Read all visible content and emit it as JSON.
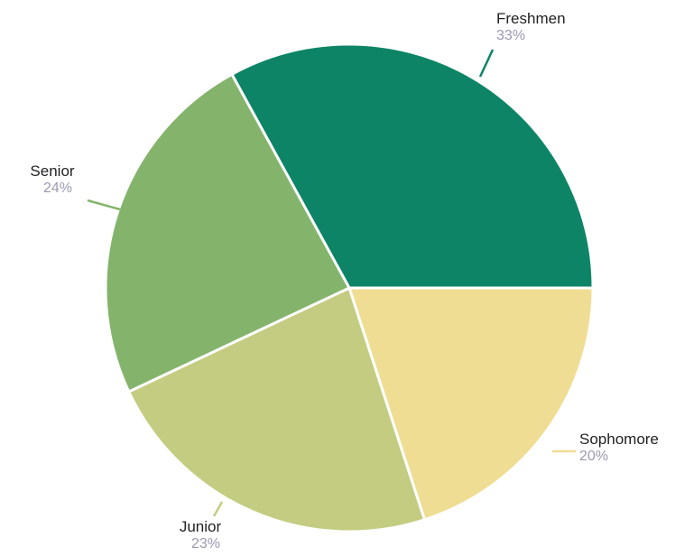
{
  "chart_data": {
    "type": "pie",
    "title": "",
    "slices": [
      {
        "label": "Freshmen",
        "value": 33,
        "value_label": "33%",
        "color": "#0c8465"
      },
      {
        "label": "Sophomore",
        "value": 20,
        "value_label": "20%",
        "color": "#f0dd94"
      },
      {
        "label": "Junior",
        "value": 23,
        "value_label": "23%",
        "color": "#c4cc82"
      },
      {
        "label": "Senior",
        "value": 24,
        "value_label": "24%",
        "color": "#84b46c"
      }
    ],
    "legend": "none",
    "labels": "outside-with-leader-lines"
  }
}
